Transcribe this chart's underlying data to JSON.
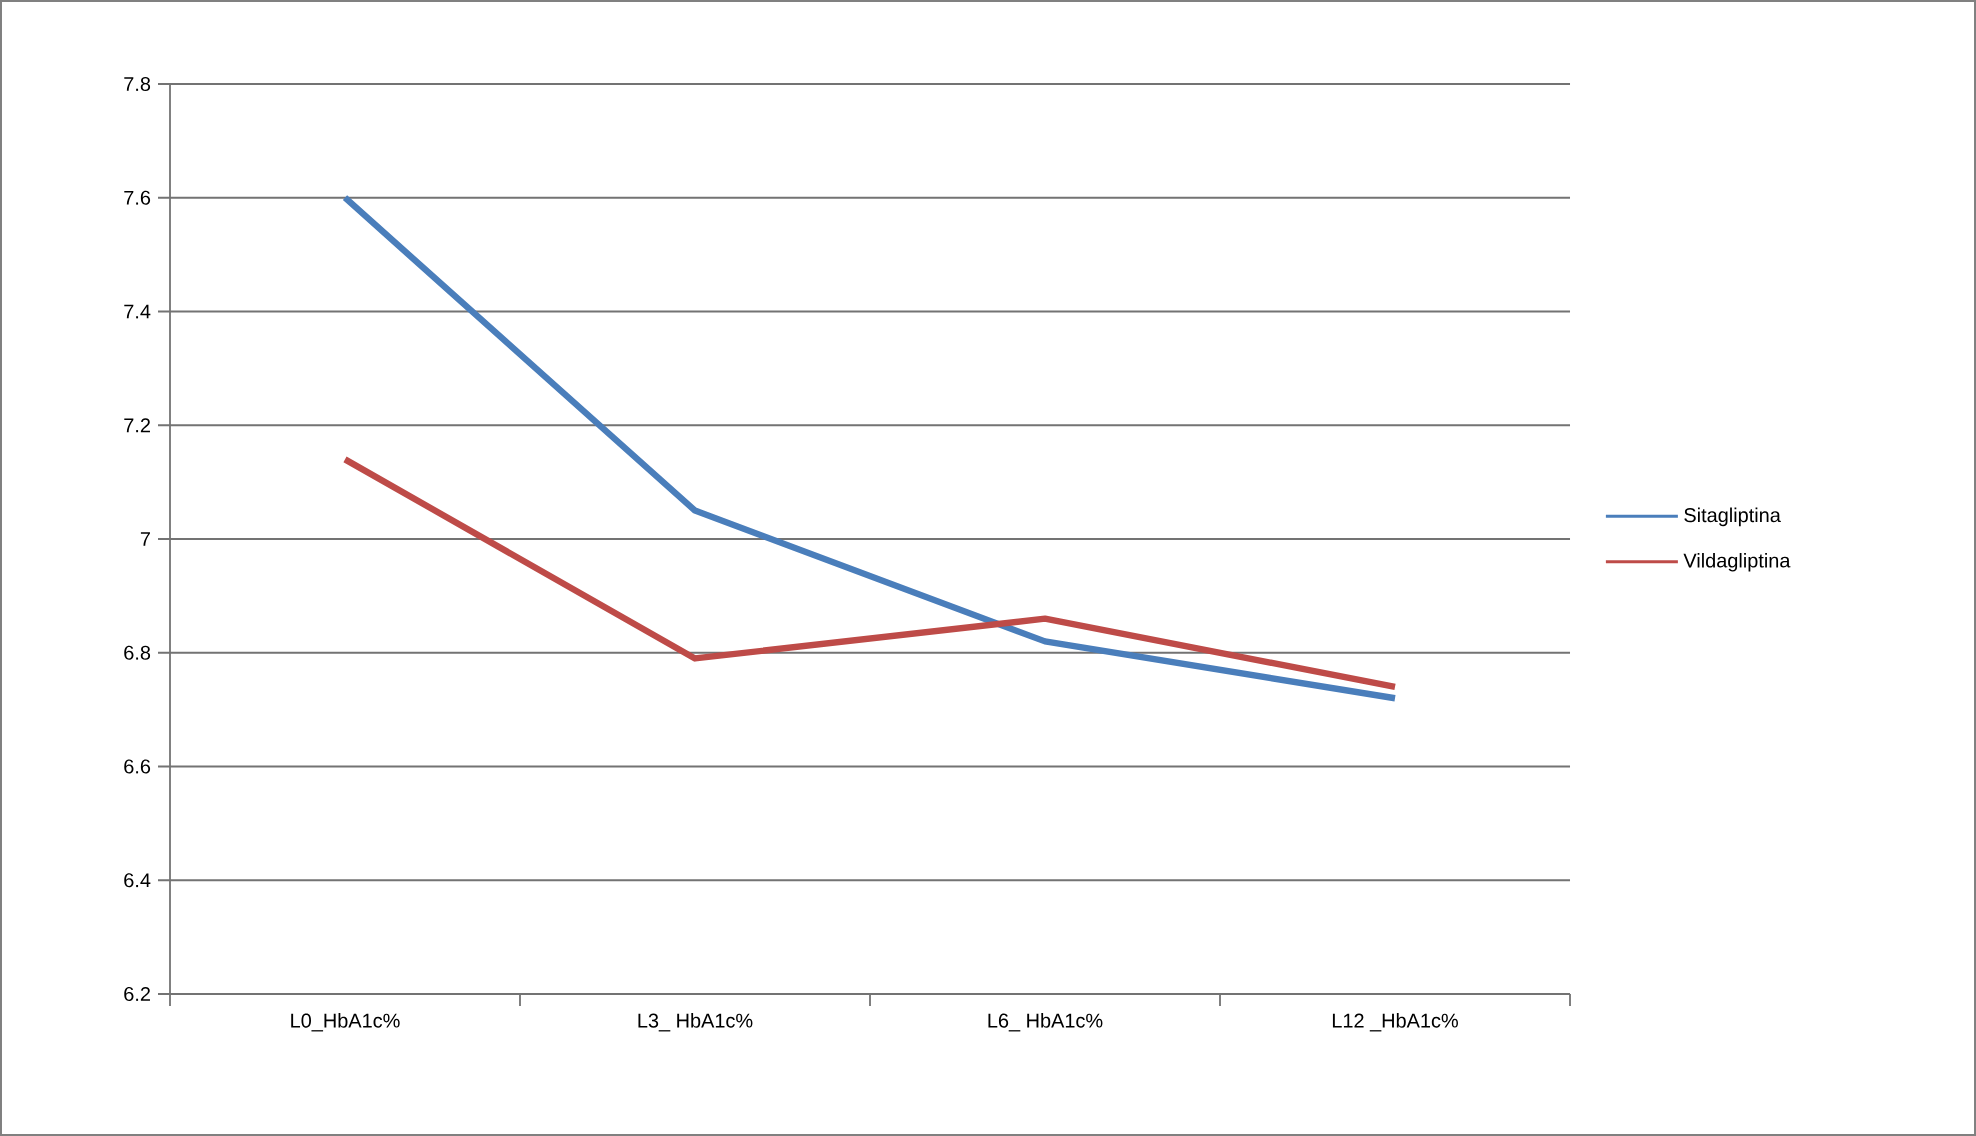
{
  "chart_data": {
    "type": "line",
    "categories": [
      "L0_HbA1c%",
      "L3_ HbA1c%",
      "L6_ HbA1c%",
      "L12 _HbA1c%"
    ],
    "series": [
      {
        "name": "Sitagliptina",
        "color": "#4a7ebb",
        "values": [
          7.6,
          7.05,
          6.82,
          6.72
        ]
      },
      {
        "name": "Vildagliptina",
        "color": "#be4b48",
        "values": [
          7.14,
          6.79,
          6.86,
          6.74
        ]
      }
    ],
    "ylim": [
      6.2,
      7.8
    ],
    "yticks": [
      {
        "value": 6.2,
        "label": "6.2"
      },
      {
        "value": 6.4,
        "label": "6.4"
      },
      {
        "value": 6.6,
        "label": "6.6"
      },
      {
        "value": 6.8,
        "label": "6.8"
      },
      {
        "value": 7,
        "label": "7"
      },
      {
        "value": 7.2,
        "label": "7.2"
      },
      {
        "value": 7.4,
        "label": "7.4"
      },
      {
        "value": 7.6,
        "label": "7.6"
      },
      {
        "value": 7.8,
        "label": "7.8"
      }
    ],
    "grid": "y",
    "legend": "right",
    "marker": "none",
    "line_style": "solid"
  }
}
